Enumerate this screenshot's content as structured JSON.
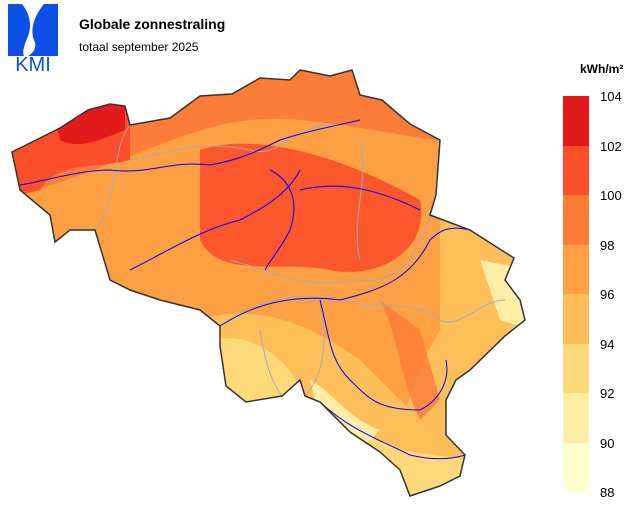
{
  "logo": {
    "text": "KMI",
    "color": "#0a50e6"
  },
  "title": "Globale zonnestraling",
  "subtitle": "totaal september 2025",
  "legend": {
    "unit": "kWh/m²",
    "ticks": [
      "104",
      "102",
      "100",
      "98",
      "96",
      "94",
      "92",
      "90",
      "88"
    ],
    "colors": [
      "#e31a1c",
      "#fc4e2a",
      "#fd7c37",
      "#fda044",
      "#febe5a",
      "#fed97a",
      "#ffeda5",
      "#ffffcc"
    ]
  },
  "map": {
    "value_range": [
      88,
      104
    ],
    "river_color": "#0000ff",
    "border_color": "#aaaaaa"
  }
}
